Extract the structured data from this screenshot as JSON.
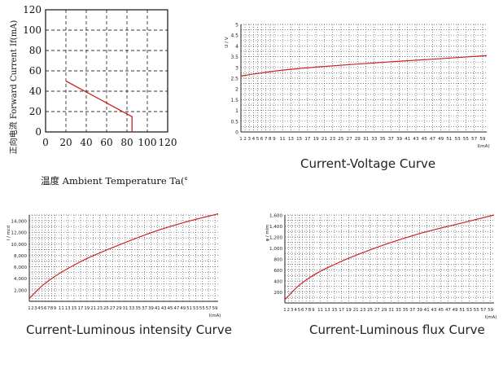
{
  "chart_data": [
    {
      "id": "derating",
      "type": "line",
      "title": "",
      "xlabel": "温度 Ambient Temperature Ta(℃)",
      "ylabel": "正向电流 Forward Current If(mA)",
      "xlim": [
        0,
        120
      ],
      "ylim": [
        0,
        120
      ],
      "xticks": [
        "0",
        "20",
        "40",
        "60",
        "80",
        "100",
        "120"
      ],
      "yticks": [
        "0",
        "20",
        "40",
        "60",
        "80",
        "100",
        "120"
      ],
      "grid": "dashed",
      "series": [
        {
          "x": [
            20,
            85,
            85
          ],
          "y": [
            50,
            15,
            0
          ],
          "color": "#cc2222"
        }
      ]
    },
    {
      "id": "iv",
      "type": "line",
      "title": "",
      "caption": "Current-Voltage Curve",
      "xlabel": "I(mA)",
      "ylabel": "U / V",
      "xlim": [
        1,
        60
      ],
      "ylim": [
        0,
        5
      ],
      "xticks": [
        "1",
        "2",
        "3",
        "4",
        "5",
        "6",
        "7",
        "8",
        "9",
        "11",
        "13",
        "15",
        "17",
        "19",
        "21",
        "23",
        "25",
        "27",
        "29",
        "31",
        "33",
        "35",
        "37",
        "39",
        "41",
        "43",
        "45",
        "47",
        "49",
        "51",
        "53",
        "55",
        "57",
        "59"
      ],
      "yticks": [
        "0",
        "0.5",
        "1",
        "1.5",
        "2",
        "2.5",
        "3",
        "3.5",
        "4",
        "4.5",
        "5"
      ],
      "grid": "dotted",
      "series": [
        {
          "x": [
            1,
            5,
            10,
            15,
            20,
            30,
            40,
            50,
            60
          ],
          "y": [
            2.6,
            2.72,
            2.85,
            2.95,
            3.03,
            3.17,
            3.3,
            3.42,
            3.55
          ],
          "color": "#cc2222"
        }
      ]
    },
    {
      "id": "iiv",
      "type": "line",
      "title": "",
      "caption": "Current-Luminous intensity Curve",
      "xlabel": "I(mA)",
      "ylabel": "I / mcd",
      "xlim": [
        1,
        60
      ],
      "ylim": [
        0,
        15000
      ],
      "xticks": [
        "1",
        "2",
        "3",
        "4",
        "5",
        "6",
        "7",
        "8",
        "9",
        "11",
        "13",
        "15",
        "17",
        "19",
        "21",
        "23",
        "25",
        "27",
        "29",
        "31",
        "33",
        "35",
        "37",
        "39",
        "41",
        "43",
        "45",
        "47",
        "49",
        "51",
        "53",
        "55",
        "57",
        "59"
      ],
      "yticks": [
        "2,000",
        "4,000",
        "6,000",
        "8,000",
        "10,000",
        "12,000",
        "14,000"
      ],
      "grid": "dotted",
      "series": [
        {
          "x": [
            1,
            5,
            10,
            15,
            20,
            30,
            40,
            50,
            60
          ],
          "y": [
            500,
            2700,
            4700,
            6300,
            7700,
            10000,
            12100,
            13800,
            15200
          ],
          "color": "#cc2222"
        }
      ]
    },
    {
      "id": "iphi",
      "type": "line",
      "title": "",
      "caption": "Current-Luminous flux Curve",
      "xlabel": "I(mA)",
      "ylabel": "φ / mlm",
      "xlim": [
        1,
        60
      ],
      "ylim": [
        0,
        1600
      ],
      "xticks": [
        "1",
        "2",
        "3",
        "4",
        "5",
        "6",
        "7",
        "8",
        "9",
        "11",
        "13",
        "15",
        "17",
        "19",
        "21",
        "23",
        "25",
        "27",
        "29",
        "31",
        "33",
        "35",
        "37",
        "39",
        "41",
        "43",
        "45",
        "47",
        "49",
        "51",
        "53",
        "55",
        "57",
        "59"
      ],
      "yticks": [
        "200",
        "400",
        "600",
        "800",
        "1,000",
        "1,200",
        "1,400",
        "1,600"
      ],
      "grid": "dotted",
      "series": [
        {
          "x": [
            1,
            5,
            10,
            15,
            20,
            30,
            40,
            50,
            60
          ],
          "y": [
            60,
            320,
            540,
            700,
            840,
            1080,
            1280,
            1440,
            1600
          ],
          "color": "#cc2222"
        }
      ]
    }
  ]
}
